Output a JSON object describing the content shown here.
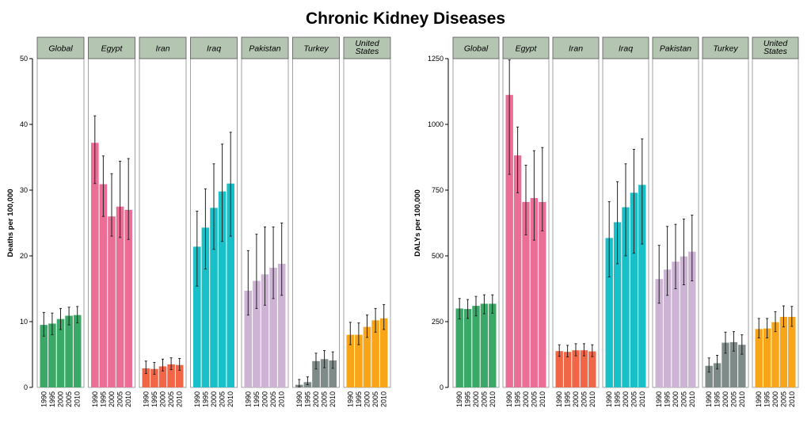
{
  "title": "Chronic Kidney Diseases",
  "chart_data": [
    {
      "type": "bar",
      "title": "Chronic Kidney Diseases",
      "ylabel": "Deaths per 100,000",
      "xlabel": "",
      "ylim": [
        0,
        50
      ],
      "yticks": [
        "0",
        "10",
        "20",
        "30",
        "40",
        "50"
      ],
      "ytick_values": [
        0,
        10,
        20,
        30,
        40,
        50
      ],
      "categories": [
        "1990",
        "1995",
        "2000",
        "2005",
        "2010"
      ],
      "panels": [
        {
          "name": "Global",
          "label_lines": [
            "Global"
          ],
          "color": "#3aa866",
          "values": [
            9.5,
            9.7,
            10.4,
            10.9,
            11.0
          ],
          "lower": [
            7.8,
            8.0,
            8.8,
            9.5,
            9.8
          ],
          "upper": [
            11.4,
            11.3,
            12.0,
            12.2,
            12.3
          ]
        },
        {
          "name": "Egypt",
          "label_lines": [
            "Egypt"
          ],
          "color": "#ea6e96",
          "values": [
            37.2,
            30.9,
            26.0,
            27.5,
            27.0
          ],
          "lower": [
            31.0,
            26.0,
            23.0,
            22.8,
            22.5
          ],
          "upper": [
            41.3,
            35.2,
            32.5,
            34.4,
            34.8
          ]
        },
        {
          "name": "Iran",
          "label_lines": [
            "Iran"
          ],
          "color": "#f26648",
          "values": [
            2.9,
            2.8,
            3.2,
            3.5,
            3.4
          ],
          "lower": [
            2.1,
            2.0,
            2.5,
            2.7,
            2.6
          ],
          "upper": [
            4.0,
            3.8,
            4.3,
            4.5,
            4.4
          ]
        },
        {
          "name": "Iraq",
          "label_lines": [
            "Iraq"
          ],
          "color": "#19c0c8",
          "values": [
            21.4,
            24.3,
            27.3,
            29.8,
            31.0
          ],
          "lower": [
            15.4,
            18.0,
            21.0,
            22.2,
            23.0
          ],
          "upper": [
            26.8,
            30.2,
            34.0,
            37.0,
            38.8
          ]
        },
        {
          "name": "Pakistan",
          "label_lines": [
            "Pakistan"
          ],
          "color": "#cdb4d5",
          "values": [
            14.7,
            16.2,
            17.2,
            18.2,
            18.8
          ],
          "lower": [
            11.0,
            12.0,
            12.5,
            13.5,
            14.0
          ],
          "upper": [
            20.8,
            23.3,
            24.4,
            24.4,
            25.0
          ]
        },
        {
          "name": "Turkey",
          "label_lines": [
            "Turkey"
          ],
          "color": "#7f8b88",
          "values": [
            0.4,
            0.8,
            4.0,
            4.3,
            4.1
          ],
          "lower": [
            0.1,
            0.4,
            2.8,
            3.0,
            2.9
          ],
          "upper": [
            1.2,
            1.6,
            5.2,
            5.6,
            5.4
          ]
        },
        {
          "name": "United States",
          "label_lines": [
            "United",
            "States"
          ],
          "color": "#f9a51a",
          "values": [
            8.0,
            8.0,
            9.2,
            10.2,
            10.5
          ],
          "lower": [
            6.5,
            6.5,
            7.6,
            8.4,
            8.8
          ],
          "upper": [
            9.9,
            9.8,
            11.0,
            12.0,
            12.6
          ]
        }
      ]
    },
    {
      "type": "bar",
      "title": "Chronic Kidney Diseases",
      "ylabel": "DALYs per 100,000",
      "xlabel": "",
      "ylim": [
        0,
        1250
      ],
      "yticks": [
        "0",
        "250",
        "500",
        "750",
        "1000",
        "1250"
      ],
      "ytick_values": [
        0,
        250,
        500,
        750,
        1000,
        1250
      ],
      "categories": [
        "1990",
        "1995",
        "2000",
        "2005",
        "2010"
      ],
      "panels": [
        {
          "name": "Global",
          "label_lines": [
            "Global"
          ],
          "color": "#3aa866",
          "values": [
            300,
            298,
            310,
            318,
            318
          ],
          "lower": [
            260,
            262,
            272,
            280,
            282
          ],
          "upper": [
            338,
            334,
            346,
            352,
            352
          ]
        },
        {
          "name": "Egypt",
          "label_lines": [
            "Egypt"
          ],
          "color": "#ea6e96",
          "values": [
            1112,
            882,
            705,
            720,
            705
          ],
          "lower": [
            810,
            740,
            580,
            560,
            595
          ],
          "upper": [
            1245,
            990,
            845,
            900,
            912
          ]
        },
        {
          "name": "Iran",
          "label_lines": [
            "Iran"
          ],
          "color": "#f26648",
          "values": [
            138,
            135,
            141,
            141,
            137
          ],
          "lower": [
            118,
            116,
            120,
            120,
            117
          ],
          "upper": [
            162,
            160,
            166,
            166,
            162
          ]
        },
        {
          "name": "Iraq",
          "label_lines": [
            "Iraq"
          ],
          "color": "#19c0c8",
          "values": [
            568,
            628,
            685,
            740,
            770
          ],
          "lower": [
            420,
            470,
            500,
            510,
            545
          ],
          "upper": [
            706,
            782,
            850,
            905,
            945
          ]
        },
        {
          "name": "Pakistan",
          "label_lines": [
            "Pakistan"
          ],
          "color": "#cdb4d5",
          "values": [
            412,
            448,
            478,
            498,
            516
          ],
          "lower": [
            320,
            350,
            375,
            390,
            405
          ],
          "upper": [
            540,
            612,
            620,
            640,
            655
          ]
        },
        {
          "name": "Turkey",
          "label_lines": [
            "Turkey"
          ],
          "color": "#7f8b88",
          "values": [
            82,
            92,
            170,
            172,
            162
          ],
          "lower": [
            58,
            70,
            130,
            138,
            126
          ],
          "upper": [
            112,
            122,
            210,
            212,
            200
          ]
        },
        {
          "name": "United States",
          "label_lines": [
            "United",
            "States"
          ],
          "color": "#f9a51a",
          "values": [
            222,
            224,
            248,
            268,
            268
          ],
          "lower": [
            188,
            188,
            212,
            230,
            232
          ],
          "upper": [
            262,
            262,
            288,
            310,
            308
          ]
        }
      ]
    }
  ]
}
